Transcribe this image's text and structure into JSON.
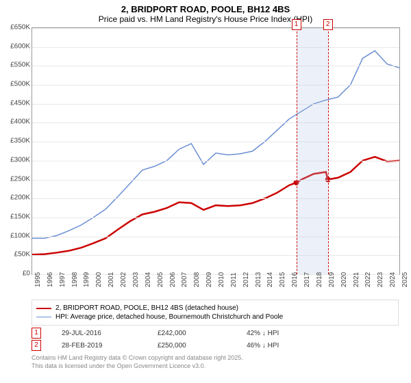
{
  "title_line1": "2, BRIDPORT ROAD, POOLE, BH12 4BS",
  "title_line2": "Price paid vs. HM Land Registry's House Price Index (HPI)",
  "chart": {
    "type": "line",
    "background_color": "#ffffff",
    "grid_color": "#e8e8e8",
    "ylim": [
      0,
      650000
    ],
    "ytick_step": 50000,
    "yticks": [
      "£0",
      "£50K",
      "£100K",
      "£150K",
      "£200K",
      "£250K",
      "£300K",
      "£350K",
      "£400K",
      "£450K",
      "£500K",
      "£550K",
      "£600K",
      "£650K"
    ],
    "xlim": [
      "1995",
      "2025"
    ],
    "xticks": [
      "1995",
      "1996",
      "1997",
      "1998",
      "1999",
      "2000",
      "2001",
      "2002",
      "2003",
      "2004",
      "2005",
      "2006",
      "2007",
      "2008",
      "2009",
      "2010",
      "2011",
      "2012",
      "2013",
      "2014",
      "2015",
      "2016",
      "2017",
      "2018",
      "2019",
      "2020",
      "2021",
      "2022",
      "2023",
      "2024",
      "2025"
    ],
    "marker_band_color": "rgba(180,200,230,0.25)",
    "marker_line_color": "#cc0000",
    "series": [
      {
        "name": "price_paid",
        "label": "2, BRIDPORT ROAD, POOLE, BH12 4BS (detached house)",
        "color": "#cc0000",
        "width": 2.5,
        "points": [
          [
            1995,
            52000
          ],
          [
            1996,
            53000
          ],
          [
            1997,
            57000
          ],
          [
            1998,
            62000
          ],
          [
            1999,
            70000
          ],
          [
            2000,
            82000
          ],
          [
            2001,
            95000
          ],
          [
            2002,
            118000
          ],
          [
            2003,
            140000
          ],
          [
            2004,
            158000
          ],
          [
            2005,
            165000
          ],
          [
            2006,
            175000
          ],
          [
            2007,
            190000
          ],
          [
            2008,
            188000
          ],
          [
            2009,
            170000
          ],
          [
            2010,
            182000
          ],
          [
            2011,
            180000
          ],
          [
            2012,
            182000
          ],
          [
            2013,
            188000
          ],
          [
            2014,
            200000
          ],
          [
            2015,
            215000
          ],
          [
            2016,
            235000
          ],
          [
            2016.58,
            242000
          ],
          [
            2017,
            250000
          ],
          [
            2018,
            265000
          ],
          [
            2019,
            270000
          ],
          [
            2019.16,
            250000
          ],
          [
            2020,
            255000
          ],
          [
            2021,
            270000
          ],
          [
            2022,
            300000
          ],
          [
            2023,
            310000
          ],
          [
            2024,
            298000
          ],
          [
            2025,
            300000
          ]
        ],
        "markers": [
          [
            2016.58,
            242000
          ],
          [
            2019.16,
            250000
          ]
        ]
      },
      {
        "name": "hpi",
        "label": "HPI: Average price, detached house, Bournemouth Christchurch and Poole",
        "color": "#6b8fd4",
        "width": 1.5,
        "points": [
          [
            1995,
            95000
          ],
          [
            1996,
            95000
          ],
          [
            1997,
            102000
          ],
          [
            1998,
            115000
          ],
          [
            1999,
            130000
          ],
          [
            2000,
            150000
          ],
          [
            2001,
            172000
          ],
          [
            2002,
            205000
          ],
          [
            2003,
            240000
          ],
          [
            2004,
            275000
          ],
          [
            2005,
            285000
          ],
          [
            2006,
            300000
          ],
          [
            2007,
            330000
          ],
          [
            2008,
            345000
          ],
          [
            2009,
            290000
          ],
          [
            2010,
            320000
          ],
          [
            2011,
            315000
          ],
          [
            2012,
            318000
          ],
          [
            2013,
            325000
          ],
          [
            2014,
            350000
          ],
          [
            2015,
            380000
          ],
          [
            2016,
            410000
          ],
          [
            2017,
            430000
          ],
          [
            2018,
            450000
          ],
          [
            2019,
            460000
          ],
          [
            2020,
            468000
          ],
          [
            2021,
            500000
          ],
          [
            2022,
            570000
          ],
          [
            2023,
            590000
          ],
          [
            2024,
            555000
          ],
          [
            2025,
            545000
          ]
        ]
      }
    ]
  },
  "legend": {
    "row1": "2, BRIDPORT ROAD, POOLE, BH12 4BS (detached house)",
    "row2": "HPI: Average price, detached house, Bournemouth Christchurch and Poole"
  },
  "transactions": [
    {
      "badge": "1",
      "date": "29-JUL-2016",
      "price": "£242,000",
      "delta": "42% ↓ HPI"
    },
    {
      "badge": "2",
      "date": "28-FEB-2019",
      "price": "£250,000",
      "delta": "46% ↓ HPI"
    }
  ],
  "copyright_line1": "Contains HM Land Registry data © Crown copyright and database right 2025.",
  "copyright_line2": "This data is licensed under the Open Government Licence v3.0."
}
